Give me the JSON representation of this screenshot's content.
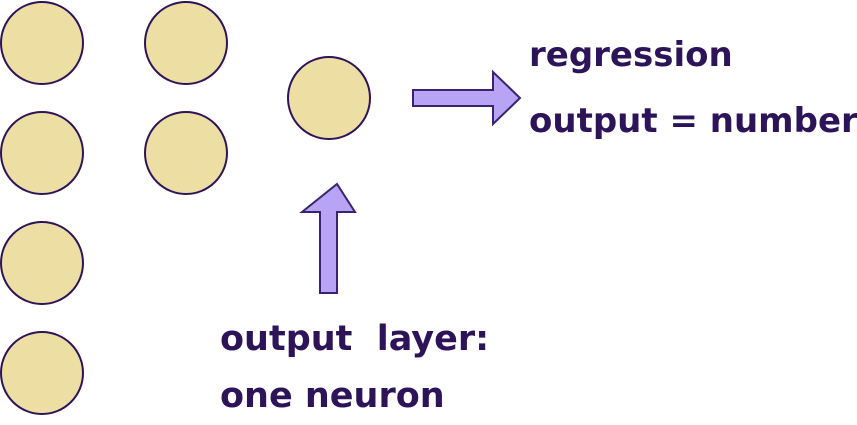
{
  "colors": {
    "neuron_fill": "#EDDEA4",
    "neuron_stroke": "#2D1458",
    "arrow_fill": "#B7A4F5",
    "arrow_stroke": "#3A2470",
    "text": "#2D1458"
  },
  "labels": {
    "regression": "regression",
    "output_equals_number": "output = number",
    "output_layer_line1": "output  layer:",
    "output_layer_line2": "one neuron"
  },
  "layers": [
    {
      "name": "layer-1",
      "neuron_count": 4
    },
    {
      "name": "layer-2",
      "neuron_count": 2
    },
    {
      "name": "output-layer",
      "neuron_count": 1
    }
  ]
}
